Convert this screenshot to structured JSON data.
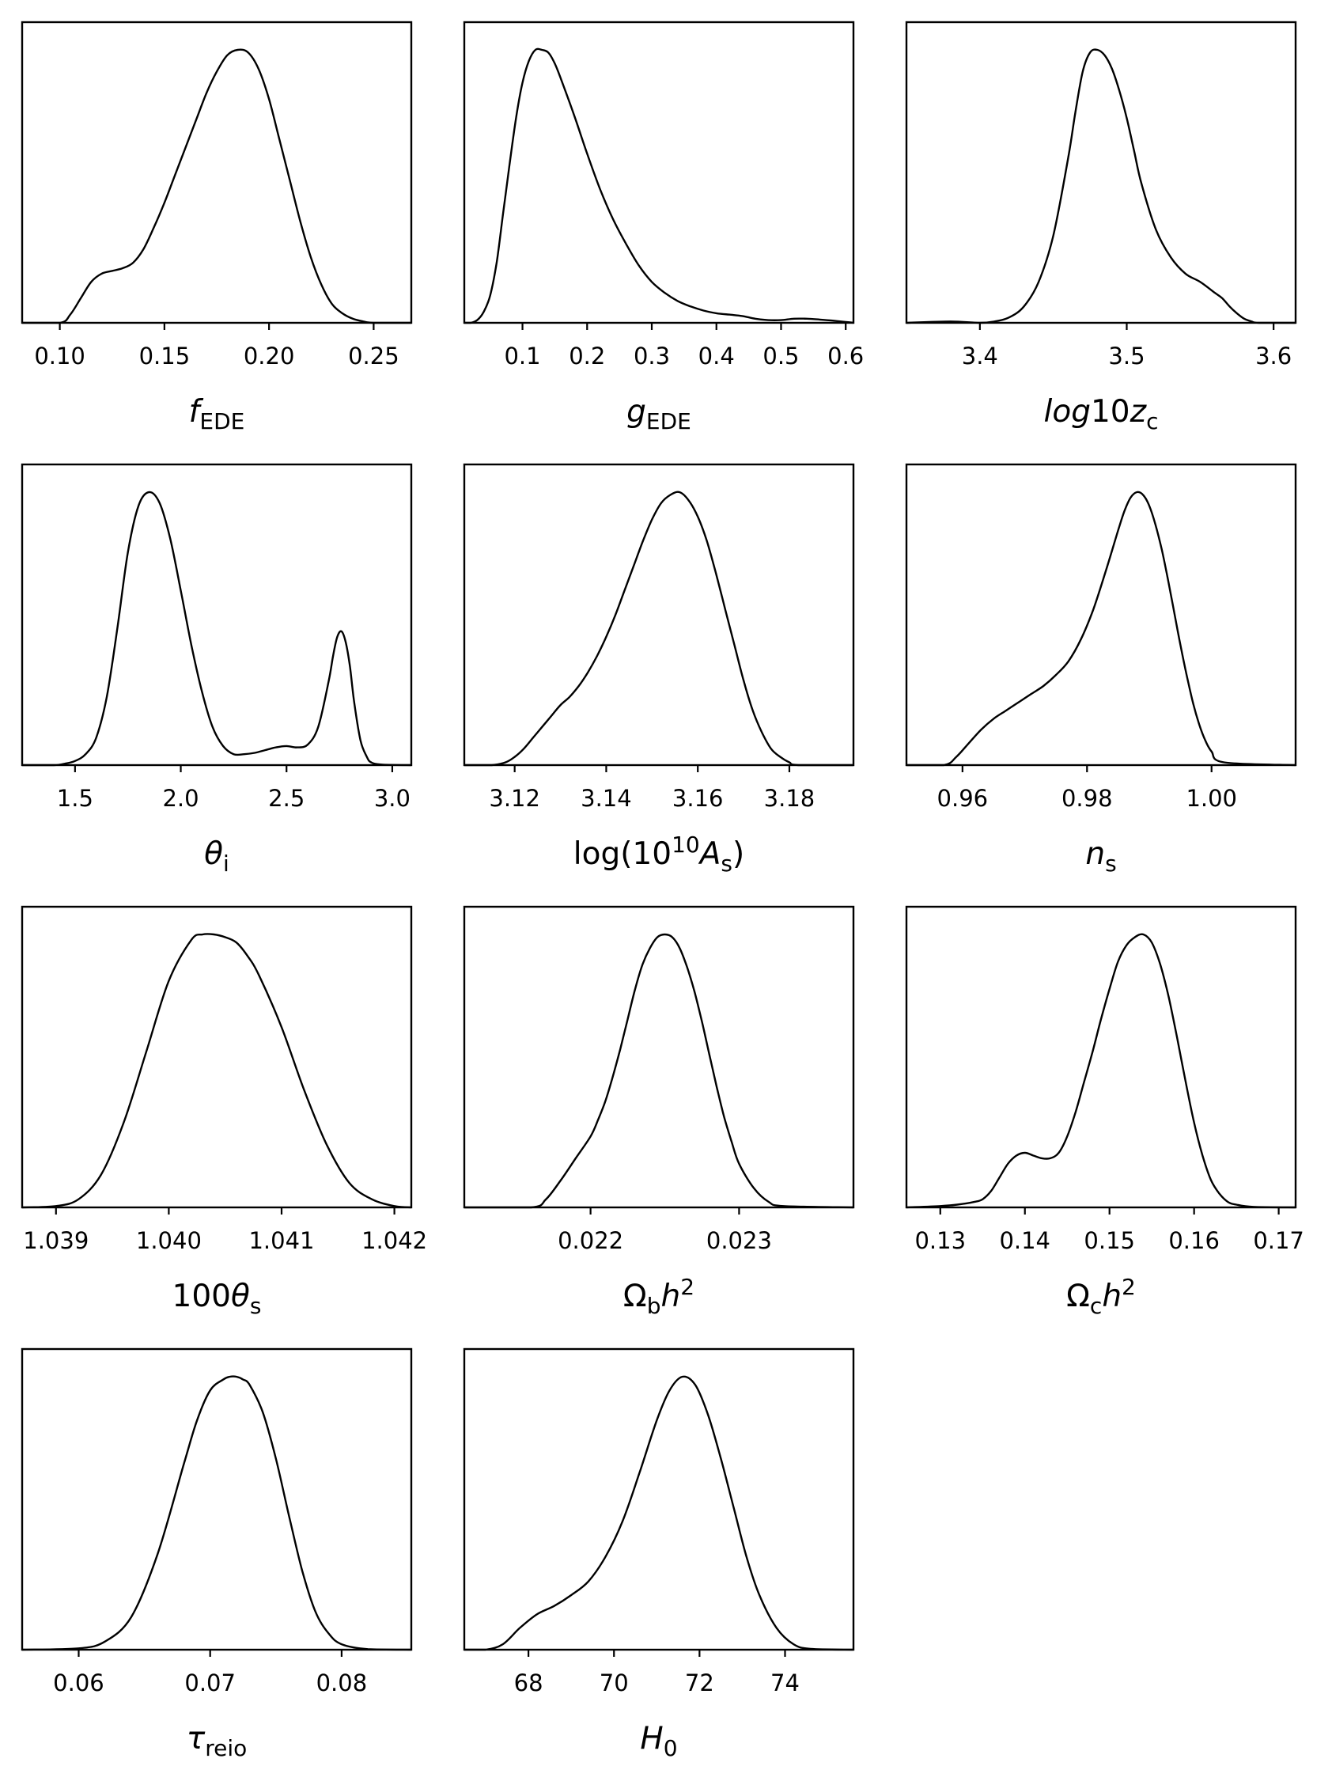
{
  "chart_data": [
    {
      "type": "line",
      "xlabel": "f_EDE",
      "xlabel_parts": [
        {
          "t": "f",
          "it": true
        },
        {
          "t": "EDE",
          "sub": true
        }
      ],
      "xlim": [
        0.082,
        0.268
      ],
      "xticks": [
        0.1,
        0.15,
        0.2,
        0.25
      ],
      "tick_labels": [
        "0.10",
        "0.15",
        "0.20",
        "0.25"
      ],
      "x": [
        0.082,
        0.1,
        0.105,
        0.11,
        0.115,
        0.12,
        0.125,
        0.13,
        0.135,
        0.14,
        0.145,
        0.15,
        0.155,
        0.16,
        0.165,
        0.17,
        0.175,
        0.18,
        0.185,
        0.19,
        0.195,
        0.2,
        0.205,
        0.21,
        0.215,
        0.22,
        0.225,
        0.23,
        0.235,
        0.24,
        0.245,
        0.25,
        0.268
      ],
      "y": [
        0.0,
        0.0,
        0.03,
        0.09,
        0.15,
        0.18,
        0.19,
        0.2,
        0.22,
        0.27,
        0.35,
        0.44,
        0.54,
        0.64,
        0.74,
        0.84,
        0.92,
        0.98,
        1.0,
        0.99,
        0.93,
        0.82,
        0.67,
        0.52,
        0.37,
        0.24,
        0.14,
        0.07,
        0.035,
        0.015,
        0.005,
        0.0,
        0.0
      ]
    },
    {
      "type": "line",
      "xlabel": "g_EDE",
      "xlabel_parts": [
        {
          "t": "g",
          "it": true
        },
        {
          "t": "EDE",
          "sub": true
        }
      ],
      "xlim": [
        0.01,
        0.612
      ],
      "xticks": [
        0.1,
        0.2,
        0.3,
        0.4,
        0.5,
        0.6
      ],
      "tick_labels": [
        "0.1",
        "0.2",
        "0.3",
        "0.4",
        "0.5",
        "0.6"
      ],
      "x": [
        0.01,
        0.02,
        0.03,
        0.04,
        0.05,
        0.06,
        0.07,
        0.08,
        0.09,
        0.1,
        0.11,
        0.12,
        0.13,
        0.14,
        0.15,
        0.16,
        0.18,
        0.2,
        0.22,
        0.24,
        0.26,
        0.28,
        0.3,
        0.32,
        0.34,
        0.36,
        0.38,
        0.4,
        0.42,
        0.44,
        0.46,
        0.48,
        0.5,
        0.52,
        0.54,
        0.56,
        0.58,
        0.6,
        0.612
      ],
      "y": [
        0.0,
        0.0,
        0.01,
        0.04,
        0.1,
        0.22,
        0.4,
        0.58,
        0.75,
        0.88,
        0.96,
        1.0,
        1.0,
        0.99,
        0.95,
        0.89,
        0.76,
        0.62,
        0.49,
        0.38,
        0.29,
        0.21,
        0.15,
        0.11,
        0.08,
        0.06,
        0.045,
        0.035,
        0.03,
        0.025,
        0.015,
        0.01,
        0.01,
        0.015,
        0.015,
        0.012,
        0.008,
        0.003,
        0.0
      ]
    },
    {
      "type": "line",
      "xlabel": "log10z_c",
      "xlabel_parts": [
        {
          "t": "log",
          "it": true
        },
        {
          "t": "10"
        },
        {
          "t": "z",
          "it": true
        },
        {
          "t": "c",
          "sub": true
        }
      ],
      "xlim": [
        3.35,
        3.615
      ],
      "xticks": [
        3.4,
        3.5,
        3.6
      ],
      "tick_labels": [
        "3.4",
        "3.5",
        "3.6"
      ],
      "x": [
        3.35,
        3.38,
        3.4,
        3.41,
        3.42,
        3.43,
        3.44,
        3.45,
        3.46,
        3.465,
        3.47,
        3.475,
        3.48,
        3.485,
        3.49,
        3.495,
        3.5,
        3.505,
        3.51,
        3.52,
        3.53,
        3.54,
        3.55,
        3.56,
        3.565,
        3.57,
        3.575,
        3.58,
        3.585,
        3.59,
        3.615
      ],
      "y": [
        0.0,
        0.005,
        0.0,
        0.005,
        0.02,
        0.06,
        0.15,
        0.32,
        0.6,
        0.77,
        0.92,
        0.99,
        1.0,
        0.98,
        0.93,
        0.85,
        0.75,
        0.63,
        0.51,
        0.34,
        0.24,
        0.18,
        0.15,
        0.11,
        0.09,
        0.06,
        0.035,
        0.015,
        0.005,
        0.0,
        0.0
      ]
    },
    {
      "type": "line",
      "xlabel": "θ_i",
      "xlabel_parts": [
        {
          "t": "θ",
          "it": true
        },
        {
          "t": "i",
          "sub": true
        }
      ],
      "xlim": [
        1.25,
        3.09
      ],
      "xticks": [
        1.5,
        2.0,
        2.5,
        3.0
      ],
      "tick_labels": [
        "1.5",
        "2.0",
        "2.5",
        "3.0"
      ],
      "x": [
        1.25,
        1.4,
        1.45,
        1.5,
        1.55,
        1.6,
        1.65,
        1.7,
        1.75,
        1.8,
        1.85,
        1.9,
        1.95,
        2.0,
        2.05,
        2.1,
        2.15,
        2.2,
        2.25,
        2.3,
        2.35,
        2.4,
        2.45,
        2.5,
        2.55,
        2.6,
        2.65,
        2.7,
        2.72,
        2.74,
        2.76,
        2.78,
        2.8,
        2.82,
        2.85,
        2.88,
        2.9,
        2.95,
        3.09
      ],
      "y": [
        0.0,
        0.0,
        0.005,
        0.015,
        0.04,
        0.1,
        0.25,
        0.5,
        0.78,
        0.95,
        1.0,
        0.96,
        0.83,
        0.64,
        0.44,
        0.27,
        0.14,
        0.07,
        0.04,
        0.04,
        0.045,
        0.055,
        0.065,
        0.07,
        0.065,
        0.075,
        0.14,
        0.31,
        0.4,
        0.47,
        0.49,
        0.45,
        0.36,
        0.23,
        0.09,
        0.03,
        0.01,
        0.002,
        0.0
      ]
    },
    {
      "type": "line",
      "xlabel": "log(10^10 A_s)",
      "xlabel_parts": [
        {
          "t": "log(10"
        },
        {
          "t": "10",
          "sup": true
        },
        {
          "t": "A",
          "it": true
        },
        {
          "t": "s",
          "sub": true
        },
        {
          "t": ")"
        }
      ],
      "xlim": [
        3.109,
        3.194
      ],
      "xticks": [
        3.12,
        3.14,
        3.16,
        3.18
      ],
      "tick_labels": [
        "3.12",
        "3.14",
        "3.16",
        "3.18"
      ],
      "x": [
        3.109,
        3.115,
        3.118,
        3.12,
        3.122,
        3.124,
        3.126,
        3.128,
        3.13,
        3.132,
        3.134,
        3.136,
        3.138,
        3.14,
        3.142,
        3.144,
        3.146,
        3.148,
        3.15,
        3.152,
        3.154,
        3.156,
        3.158,
        3.16,
        3.162,
        3.164,
        3.166,
        3.168,
        3.17,
        3.172,
        3.174,
        3.176,
        3.178,
        3.18,
        3.182,
        3.194
      ],
      "y": [
        0.0,
        0.0,
        0.01,
        0.03,
        0.06,
        0.1,
        0.14,
        0.18,
        0.22,
        0.25,
        0.29,
        0.34,
        0.4,
        0.47,
        0.55,
        0.64,
        0.73,
        0.82,
        0.9,
        0.96,
        0.99,
        1.0,
        0.97,
        0.91,
        0.82,
        0.7,
        0.57,
        0.44,
        0.31,
        0.2,
        0.12,
        0.06,
        0.03,
        0.01,
        0.0,
        0.0
      ]
    },
    {
      "type": "line",
      "xlabel": "n_s",
      "xlabel_parts": [
        {
          "t": "n",
          "it": true
        },
        {
          "t": "s",
          "sub": true
        }
      ],
      "xlim": [
        0.951,
        1.0135
      ],
      "xticks": [
        0.96,
        0.98,
        1.0
      ],
      "tick_labels": [
        "0.96",
        "0.98",
        "1.00"
      ],
      "x": [
        0.951,
        0.957,
        0.959,
        0.961,
        0.963,
        0.965,
        0.967,
        0.969,
        0.971,
        0.973,
        0.975,
        0.977,
        0.979,
        0.981,
        0.983,
        0.985,
        0.986,
        0.987,
        0.988,
        0.989,
        0.99,
        0.991,
        0.992,
        0.993,
        0.994,
        0.995,
        0.996,
        0.997,
        0.998,
        0.999,
        1.0,
        1.002,
        1.0135
      ],
      "y": [
        0.0,
        0.0,
        0.03,
        0.08,
        0.13,
        0.17,
        0.2,
        0.23,
        0.26,
        0.29,
        0.33,
        0.38,
        0.46,
        0.57,
        0.71,
        0.86,
        0.93,
        0.98,
        1.0,
        0.99,
        0.95,
        0.88,
        0.79,
        0.68,
        0.56,
        0.44,
        0.33,
        0.23,
        0.15,
        0.09,
        0.05,
        0.01,
        0.0
      ]
    },
    {
      "type": "line",
      "xlabel": "100θ_s",
      "xlabel_parts": [
        {
          "t": "100"
        },
        {
          "t": "θ",
          "it": true
        },
        {
          "t": "s",
          "sub": true
        }
      ],
      "xlim": [
        1.0387,
        1.04215
      ],
      "xticks": [
        1.039,
        1.04,
        1.041,
        1.042
      ],
      "tick_labels": [
        "1.039",
        "1.040",
        "1.041",
        "1.042"
      ],
      "x": [
        1.0387,
        1.039,
        1.0392,
        1.0394,
        1.0396,
        1.0398,
        1.04,
        1.0402,
        1.0403,
        1.0404,
        1.0405,
        1.0406,
        1.0407,
        1.0408,
        1.041,
        1.0412,
        1.0414,
        1.0416,
        1.0418,
        1.042,
        1.04215
      ],
      "y": [
        0.0,
        0.005,
        0.03,
        0.12,
        0.31,
        0.57,
        0.83,
        0.98,
        1.0,
        1.0,
        0.99,
        0.97,
        0.92,
        0.85,
        0.66,
        0.43,
        0.23,
        0.09,
        0.03,
        0.005,
        0.0
      ]
    },
    {
      "type": "line",
      "xlabel": "Ω_b h^2",
      "xlabel_parts": [
        {
          "t": "Ω"
        },
        {
          "t": "b",
          "sub": true
        },
        {
          "t": "h",
          "it": true
        },
        {
          "t": "2",
          "sup": true
        }
      ],
      "xlim": [
        0.02115,
        0.02377
      ],
      "xticks": [
        0.022,
        0.023
      ],
      "tick_labels": [
        "0.022",
        "0.023"
      ],
      "x": [
        0.02115,
        0.0216,
        0.0217,
        0.0218,
        0.0219,
        0.022,
        0.02205,
        0.0221,
        0.02215,
        0.0222,
        0.02225,
        0.0223,
        0.02235,
        0.0224,
        0.02245,
        0.0225,
        0.02255,
        0.0226,
        0.02265,
        0.0227,
        0.02275,
        0.0228,
        0.02285,
        0.0229,
        0.02295,
        0.023,
        0.0231,
        0.0232,
        0.0233,
        0.02377
      ],
      "y": [
        0.0,
        0.0,
        0.03,
        0.1,
        0.18,
        0.26,
        0.32,
        0.39,
        0.48,
        0.58,
        0.69,
        0.8,
        0.89,
        0.95,
        0.99,
        1.0,
        0.99,
        0.95,
        0.88,
        0.79,
        0.68,
        0.56,
        0.44,
        0.33,
        0.24,
        0.16,
        0.07,
        0.02,
        0.005,
        0.0
      ]
    },
    {
      "type": "line",
      "xlabel": "Ω_c h^2",
      "xlabel_parts": [
        {
          "t": "Ω"
        },
        {
          "t": "c",
          "sub": true
        },
        {
          "t": "h",
          "it": true
        },
        {
          "t": "2",
          "sup": true
        }
      ],
      "xlim": [
        0.126,
        0.172
      ],
      "xticks": [
        0.13,
        0.14,
        0.15,
        0.16,
        0.17
      ],
      "tick_labels": [
        "0.13",
        "0.14",
        "0.15",
        "0.16",
        "0.17"
      ],
      "x": [
        0.126,
        0.13,
        0.132,
        0.134,
        0.135,
        0.136,
        0.137,
        0.138,
        0.139,
        0.14,
        0.141,
        0.142,
        0.143,
        0.144,
        0.145,
        0.146,
        0.147,
        0.148,
        0.149,
        0.15,
        0.151,
        0.152,
        0.153,
        0.154,
        0.155,
        0.156,
        0.157,
        0.158,
        0.159,
        0.16,
        0.161,
        0.162,
        0.163,
        0.164,
        0.165,
        0.167,
        0.172
      ],
      "y": [
        0.0,
        0.005,
        0.01,
        0.02,
        0.03,
        0.06,
        0.11,
        0.16,
        0.19,
        0.2,
        0.19,
        0.18,
        0.18,
        0.2,
        0.26,
        0.35,
        0.46,
        0.57,
        0.69,
        0.8,
        0.9,
        0.96,
        0.99,
        1.0,
        0.97,
        0.89,
        0.77,
        0.62,
        0.46,
        0.31,
        0.19,
        0.1,
        0.05,
        0.02,
        0.01,
        0.002,
        0.0
      ]
    },
    {
      "type": "line",
      "xlabel": "τ_reio",
      "xlabel_parts": [
        {
          "t": "τ",
          "it": true
        },
        {
          "t": "reio",
          "sub": true
        }
      ],
      "xlim": [
        0.0557,
        0.0853
      ],
      "xticks": [
        0.06,
        0.07,
        0.08
      ],
      "tick_labels": [
        "0.06",
        "0.07",
        "0.08"
      ],
      "x": [
        0.0557,
        0.06,
        0.062,
        0.064,
        0.066,
        0.068,
        0.069,
        0.07,
        0.071,
        0.0715,
        0.072,
        0.0725,
        0.073,
        0.074,
        0.075,
        0.076,
        0.077,
        0.078,
        0.079,
        0.08,
        0.082,
        0.0853
      ],
      "y": [
        0.0,
        0.005,
        0.03,
        0.12,
        0.35,
        0.68,
        0.84,
        0.95,
        0.99,
        1.0,
        1.0,
        0.99,
        0.97,
        0.87,
        0.7,
        0.49,
        0.29,
        0.14,
        0.06,
        0.02,
        0.002,
        0.0
      ]
    },
    {
      "type": "line",
      "xlabel": "H_0",
      "xlabel_parts": [
        {
          "t": "H",
          "it": true
        },
        {
          "t": "0",
          "sub": true
        }
      ],
      "xlim": [
        66.5,
        75.6
      ],
      "xticks": [
        68,
        70,
        72,
        74
      ],
      "tick_labels": [
        "68",
        "70",
        "72",
        "74"
      ],
      "x": [
        66.5,
        67.0,
        67.4,
        67.8,
        68.2,
        68.6,
        69.0,
        69.4,
        69.8,
        70.2,
        70.6,
        71.0,
        71.3,
        71.6,
        71.9,
        72.2,
        72.5,
        72.8,
        73.1,
        73.4,
        73.8,
        74.2,
        74.6,
        75.6
      ],
      "y": [
        0.0,
        0.0,
        0.02,
        0.08,
        0.13,
        0.16,
        0.2,
        0.25,
        0.34,
        0.47,
        0.65,
        0.84,
        0.95,
        1.0,
        0.97,
        0.86,
        0.7,
        0.52,
        0.34,
        0.2,
        0.08,
        0.02,
        0.003,
        0.0
      ]
    }
  ]
}
